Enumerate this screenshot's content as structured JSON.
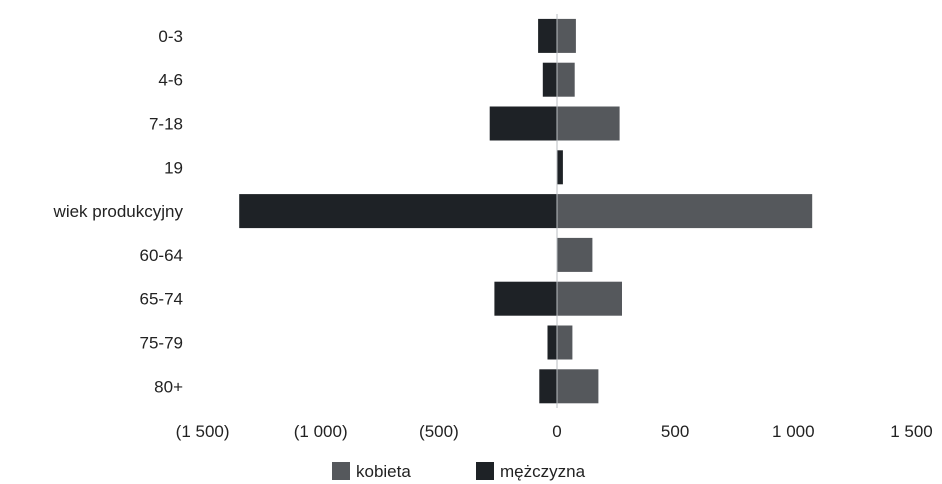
{
  "chart_data": {
    "type": "bar",
    "orientation": "horizontal",
    "layout": "population-pyramid",
    "categories": [
      "0-3",
      "4-6",
      "7-18",
      "19",
      "wiek produkcyjny",
      "60-64",
      "65-74",
      "75-79",
      "80+"
    ],
    "series": [
      {
        "name": "kobieta",
        "color": "#55585c",
        "values": [
          80,
          75,
          265,
          0,
          1080,
          150,
          275,
          65,
          175
        ]
      },
      {
        "name": "mężczyzna",
        "color": "#1e2226",
        "values": [
          -80,
          -60,
          -285,
          25,
          -1345,
          0,
          -265,
          -40,
          -75
        ]
      }
    ],
    "x_ticks": [
      -1500,
      -1000,
      -500,
      0,
      500,
      1000,
      1500
    ],
    "x_tick_labels": [
      "(1 500)",
      "(1 000)",
      "(500)",
      "0",
      "500",
      "1 000",
      "1 500"
    ],
    "xlim": [
      -1500,
      1500
    ],
    "legend_position": "bottom",
    "grid": false
  }
}
